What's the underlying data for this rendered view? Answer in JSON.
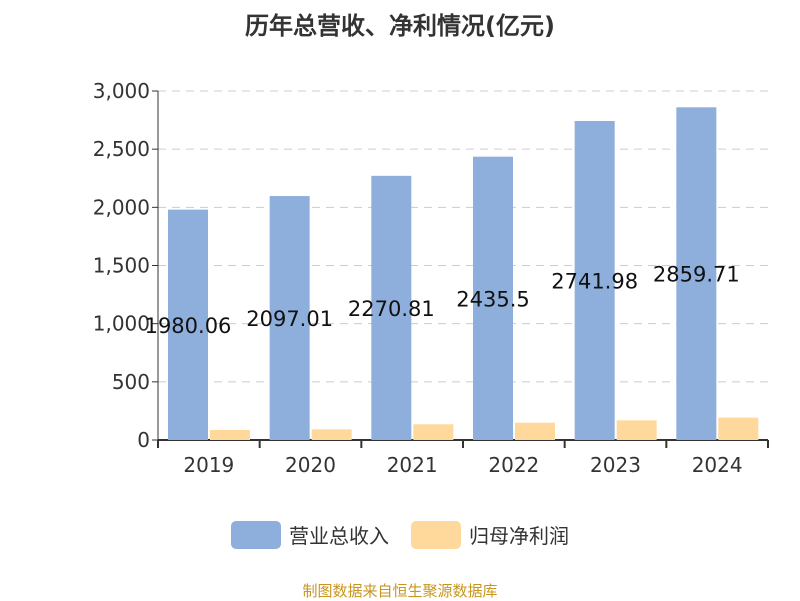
{
  "chart_data": {
    "type": "bar",
    "title": "历年总营收、净利情况(亿元)",
    "categories": [
      "2019",
      "2020",
      "2021",
      "2022",
      "2023",
      "2024"
    ],
    "series": [
      {
        "name": "营业总收入",
        "values": [
          1980.06,
          2097.01,
          2270.81,
          2435.5,
          2741.98,
          2859.71
        ],
        "color": "#8eaedb",
        "labels": [
          "1980.06",
          "2097.01",
          "2270.81",
          "2435.5",
          "2741.98",
          "2859.71"
        ]
      },
      {
        "name": "归母净利润",
        "values": [
          86,
          92,
          135,
          149,
          169,
          192
        ],
        "color": "#ffd89b"
      }
    ],
    "ylim": [
      0,
      3000
    ],
    "yticks": [
      "0",
      "500",
      "1,000",
      "1,500",
      "2,000",
      "2,500",
      "3,000"
    ],
    "grid": true,
    "legend": "bottom"
  },
  "source": "制图数据来自恒生聚源数据库"
}
